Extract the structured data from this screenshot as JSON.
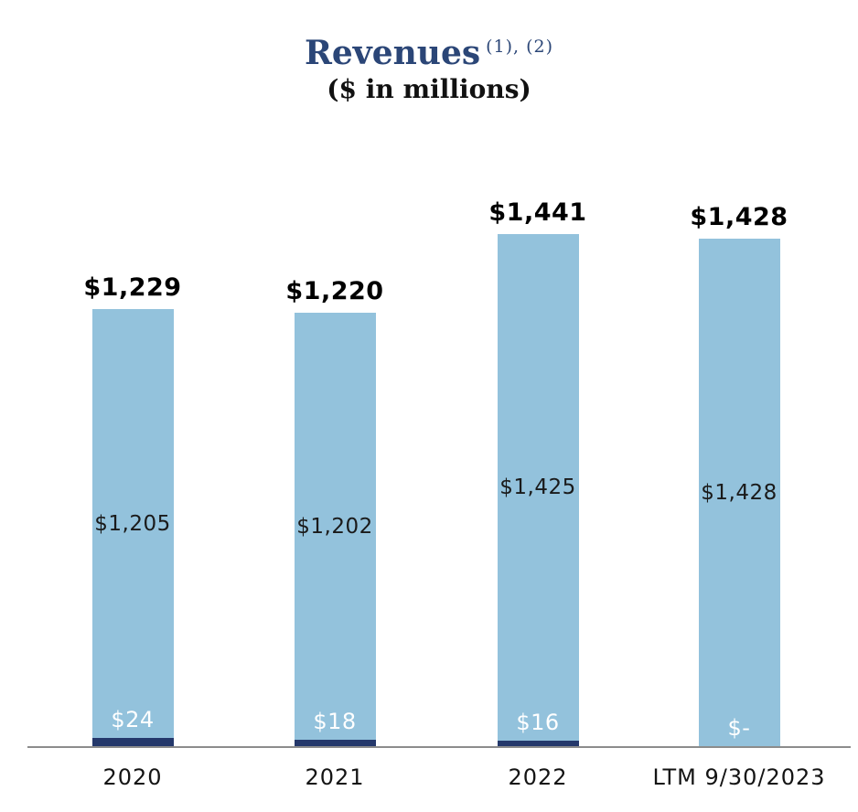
{
  "title": {
    "text": "Revenues",
    "superscript": "(1), (2)"
  },
  "subtitle": "($ in millions)",
  "colors": {
    "light_blue": "#93C2DC",
    "navy": "#24386B",
    "title_navy": "#2B4677",
    "axis_gray": "#8C8C8C",
    "label_black": "#000000",
    "label_white": "#FFFFFF"
  },
  "chart_data": {
    "type": "bar",
    "stacked": true,
    "title": "Revenues (1), (2)",
    "subtitle": "($ in millions)",
    "xlabel": "",
    "ylabel": "Revenues ($ in millions)",
    "ylim": [
      0,
      1441
    ],
    "grid": false,
    "legend": "none",
    "categories": [
      "2020",
      "2021",
      "2022",
      "LTM 9/30/2023"
    ],
    "series": [
      {
        "name": "navy-segment",
        "color": "#24386B",
        "values": [
          24,
          18,
          16,
          0
        ],
        "labels": [
          "$24",
          "$18",
          "$16",
          "$-"
        ]
      },
      {
        "name": "light-blue-segment",
        "color": "#93C2DC",
        "values": [
          1205,
          1202,
          1425,
          1428
        ],
        "labels": [
          "$1,205",
          "$1,202",
          "$1,425",
          "$1,428"
        ]
      }
    ],
    "totals": [
      1229,
      1220,
      1441,
      1428
    ],
    "total_labels": [
      "$1,229",
      "$1,220",
      "$1,441",
      "$1,428"
    ]
  }
}
